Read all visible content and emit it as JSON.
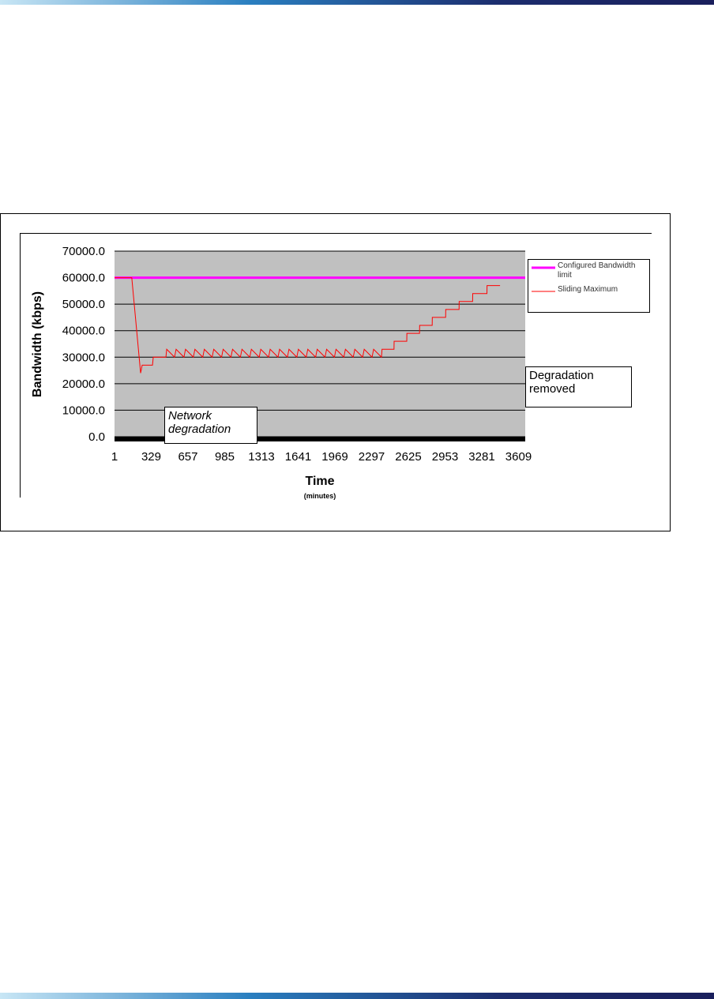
{
  "chart_data": {
    "type": "line",
    "y_label": "Bandwidth (kbps)",
    "x_label": "Time",
    "x_sublabel": "(minutes)",
    "xlim": [
      1,
      3669
    ],
    "xticks": [
      1,
      329,
      657,
      985,
      1313,
      1641,
      1969,
      2297,
      2625,
      2953,
      3281,
      3609
    ],
    "ylim": [
      0,
      70000
    ],
    "yticks": [
      {
        "value": 0,
        "label": "0.0"
      },
      {
        "value": 10000,
        "label": "10000.0"
      },
      {
        "value": 20000,
        "label": "20000.0"
      },
      {
        "value": 30000,
        "label": "30000.0"
      },
      {
        "value": 40000,
        "label": "40000.0"
      },
      {
        "value": 50000,
        "label": "50000.0"
      },
      {
        "value": 60000,
        "label": "60000.0"
      },
      {
        "value": 70000,
        "label": "70000.0"
      }
    ],
    "grid": true,
    "legend": "right",
    "series": [
      {
        "name": "Configured Bandwidth limit",
        "color": "#ff00ff",
        "width": 3,
        "x": [
          1,
          3669
        ],
        "values": [
          60000,
          60000
        ]
      },
      {
        "name": "Sliding Maximum",
        "color": "#ff0000",
        "width": 1,
        "x": [
          1,
          155,
          234,
          248,
          340,
          347,
          460,
          467,
          537,
          551,
          621,
          635,
          705,
          719,
          789,
          803,
          873,
          887,
          957,
          971,
          1041,
          1055,
          1125,
          1139,
          1209,
          1223,
          1293,
          1307,
          1377,
          1391,
          1461,
          1475,
          1545,
          1559,
          1629,
          1643,
          1713,
          1727,
          1797,
          1811,
          1881,
          1895,
          1965,
          1979,
          2049,
          2063,
          2133,
          2147,
          2217,
          2231,
          2301,
          2315,
          2385,
          2390,
          2497,
          2498,
          2611,
          2612,
          2725,
          2726,
          2838,
          2839,
          2958,
          2959,
          3078,
          3079,
          3199,
          3200,
          3327,
          3328,
          3444
        ],
        "values": [
          60000,
          60000,
          24000,
          27000,
          27000,
          30000,
          30000,
          33000,
          30000,
          33000,
          30000,
          33000,
          30000,
          33000,
          30000,
          33000,
          30000,
          33000,
          30000,
          33000,
          30000,
          33000,
          30000,
          33000,
          30000,
          33000,
          30000,
          33000,
          30000,
          33000,
          30000,
          33000,
          30000,
          33000,
          30000,
          33000,
          30000,
          33000,
          30000,
          33000,
          30000,
          33000,
          30000,
          33000,
          30000,
          33000,
          30000,
          33000,
          30000,
          33000,
          30000,
          33000,
          30000,
          33000,
          33000,
          36000,
          36000,
          39000,
          39000,
          42000,
          42000,
          45000,
          45000,
          48000,
          48000,
          51000,
          51000,
          54000,
          54000,
          57000,
          57000
        ]
      }
    ],
    "annotations": [
      {
        "text": "Network degradation"
      },
      {
        "text": "Degradation removed"
      }
    ]
  }
}
